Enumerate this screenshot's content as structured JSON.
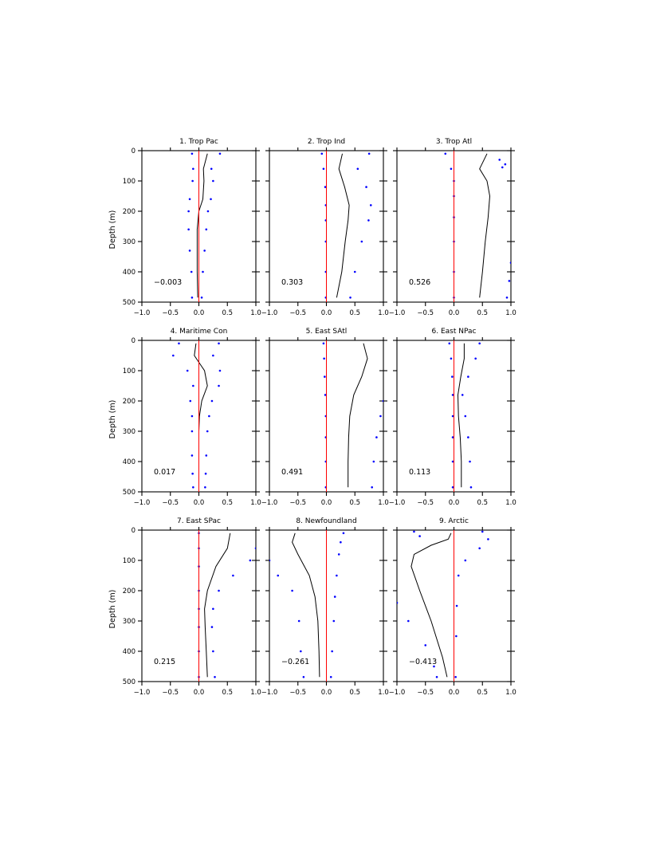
{
  "chart_data": [
    {
      "type": "line",
      "title": "1. Trop Pac",
      "ylabel": "Depth (m)",
      "xlim": [
        -1.0,
        1.0
      ],
      "ylim": [
        0,
        500
      ],
      "y_inverted": true,
      "xticks": [
        "-1.0",
        "-0.5",
        "0.0",
        "0.5",
        "1.0"
      ],
      "yticks": [
        "0",
        "100",
        "200",
        "300",
        "400",
        "500"
      ],
      "annotation": "-0.003",
      "series": [
        {
          "style": "solid",
          "color": "#000000",
          "x": [
            0.15,
            0.08,
            0.09,
            0.07,
            0.0,
            -0.03,
            -0.03,
            -0.03,
            -0.02
          ],
          "y": [
            10,
            60,
            100,
            160,
            200,
            260,
            330,
            400,
            485
          ]
        },
        {
          "style": "dotted",
          "color": "#0000ff",
          "x": [
            -0.12,
            -0.1,
            -0.11,
            -0.16,
            -0.18,
            -0.18,
            -0.16,
            -0.13,
            -0.12
          ],
          "y": [
            10,
            60,
            100,
            160,
            200,
            260,
            330,
            400,
            485
          ]
        },
        {
          "style": "dotted",
          "color": "#0000ff",
          "x": [
            0.37,
            0.22,
            0.25,
            0.21,
            0.16,
            0.13,
            0.1,
            0.07,
            0.05
          ],
          "y": [
            10,
            60,
            100,
            160,
            200,
            260,
            330,
            400,
            485
          ]
        },
        {
          "style": "reference",
          "color": "#ff0000",
          "x": [
            0.0,
            0.0
          ],
          "y": [
            0,
            500
          ]
        }
      ]
    },
    {
      "type": "line",
      "title": "2. Trop Ind",
      "ylabel": "",
      "xlim": [
        -1.0,
        1.0
      ],
      "ylim": [
        0,
        500
      ],
      "y_inverted": true,
      "xticks": [
        "-1.0",
        "-0.5",
        "0.0",
        "0.5",
        "1.0"
      ],
      "yticks": [
        "0",
        "100",
        "200",
        "300",
        "400",
        "500"
      ],
      "annotation": "0.303",
      "series": [
        {
          "style": "solid",
          "color": "#000000",
          "x": [
            0.28,
            0.22,
            0.32,
            0.4,
            0.38,
            0.33,
            0.27,
            0.18
          ],
          "y": [
            10,
            60,
            120,
            180,
            230,
            300,
            400,
            485
          ]
        },
        {
          "style": "dotted",
          "color": "#0000ff",
          "x": [
            -0.08,
            -0.05,
            -0.02,
            -0.01,
            -0.01,
            -0.01,
            -0.01,
            -0.01
          ],
          "y": [
            10,
            60,
            120,
            180,
            230,
            300,
            400,
            485
          ]
        },
        {
          "style": "dotted",
          "color": "#0000ff",
          "x": [
            0.75,
            0.55,
            0.7,
            0.78,
            0.74,
            0.62,
            0.5,
            0.42
          ],
          "y": [
            10,
            60,
            120,
            180,
            230,
            300,
            400,
            485
          ]
        },
        {
          "style": "reference",
          "color": "#ff0000",
          "x": [
            0.0,
            0.0
          ],
          "y": [
            0,
            500
          ]
        }
      ]
    },
    {
      "type": "line",
      "title": "3. Trop Atl",
      "ylabel": "",
      "xlim": [
        -1.0,
        1.0
      ],
      "ylim": [
        0,
        500
      ],
      "y_inverted": true,
      "xticks": [
        "-1.0",
        "-0.5",
        "0.0",
        "0.5",
        "1.0"
      ],
      "yticks": [
        "0",
        "100",
        "200",
        "300",
        "400",
        "500"
      ],
      "annotation": "0.526",
      "series": [
        {
          "style": "solid",
          "color": "#000000",
          "x": [
            0.58,
            0.45,
            0.58,
            0.63,
            0.6,
            0.55,
            0.5,
            0.45
          ],
          "y": [
            10,
            60,
            100,
            150,
            220,
            300,
            400,
            485
          ]
        },
        {
          "style": "dotted",
          "color": "#0000ff",
          "x": [
            -0.15,
            -0.05,
            0.0,
            0.0,
            0.0,
            0.0,
            0.0,
            0.0
          ],
          "y": [
            10,
            60,
            100,
            150,
            220,
            300,
            400,
            485
          ]
        },
        {
          "style": "dotted",
          "color": "#0000ff",
          "x": [
            0.8,
            0.9,
            0.85
          ],
          "y": [
            30,
            45,
            55
          ]
        },
        {
          "style": "dotted",
          "color": "#0000ff",
          "x": [
            1.0,
            0.97,
            0.93
          ],
          "y": [
            370,
            430,
            485
          ]
        },
        {
          "style": "reference",
          "color": "#ff0000",
          "x": [
            0.0,
            0.0
          ],
          "y": [
            0,
            500
          ]
        }
      ]
    },
    {
      "type": "line",
      "title": "4. Maritime Con",
      "ylabel": "Depth (m)",
      "xlim": [
        -1.0,
        1.0
      ],
      "ylim": [
        0,
        500
      ],
      "y_inverted": true,
      "xticks": [
        "-1.0",
        "-0.5",
        "0.0",
        "0.5",
        "1.0"
      ],
      "yticks": [
        "0",
        "100",
        "200",
        "300",
        "400",
        "500"
      ],
      "annotation": "0.017",
      "series": [
        {
          "style": "solid",
          "color": "#000000",
          "x": [
            -0.05,
            -0.08,
            0.1,
            0.15,
            0.05,
            0.01,
            0.0,
            0.0,
            0.0,
            0.0
          ],
          "y": [
            10,
            50,
            100,
            150,
            200,
            250,
            300,
            380,
            440,
            485
          ]
        },
        {
          "style": "dotted",
          "color": "#0000ff",
          "x": [
            -0.35,
            -0.45,
            -0.2,
            -0.1,
            -0.15,
            -0.12,
            -0.12,
            -0.12,
            -0.11,
            -0.1
          ],
          "y": [
            10,
            50,
            100,
            150,
            200,
            250,
            300,
            380,
            440,
            485
          ]
        },
        {
          "style": "dotted",
          "color": "#0000ff",
          "x": [
            0.35,
            0.25,
            0.37,
            0.35,
            0.23,
            0.18,
            0.15,
            0.13,
            0.12,
            0.11
          ],
          "y": [
            10,
            50,
            100,
            150,
            200,
            250,
            300,
            380,
            440,
            485
          ]
        },
        {
          "style": "reference",
          "color": "#ff0000",
          "x": [
            0.0,
            0.0
          ],
          "y": [
            0,
            500
          ]
        }
      ]
    },
    {
      "type": "line",
      "title": "5. East SAtl",
      "ylabel": "",
      "xlim": [
        -1.0,
        1.0
      ],
      "ylim": [
        0,
        500
      ],
      "y_inverted": true,
      "xticks": [
        "-1.0",
        "-0.5",
        "0.0",
        "0.5",
        "1.0"
      ],
      "yticks": [
        "0",
        "100",
        "200",
        "300",
        "400",
        "500"
      ],
      "annotation": "0.491",
      "series": [
        {
          "style": "solid",
          "color": "#000000",
          "x": [
            0.65,
            0.72,
            0.62,
            0.48,
            0.41,
            0.39,
            0.38,
            0.38
          ],
          "y": [
            10,
            60,
            120,
            180,
            250,
            320,
            400,
            485
          ]
        },
        {
          "style": "dotted",
          "color": "#0000ff",
          "x": [
            -0.05,
            -0.04,
            -0.03,
            -0.02,
            -0.01,
            -0.01,
            -0.01,
            -0.01
          ],
          "y": [
            10,
            60,
            120,
            180,
            250,
            320,
            400,
            485
          ]
        },
        {
          "style": "dotted",
          "color": "#0000ff",
          "x": [
            1.0,
            0.95,
            0.88,
            0.83,
            0.8
          ],
          "y": [
            200,
            250,
            320,
            400,
            485
          ]
        },
        {
          "style": "reference",
          "color": "#ff0000",
          "x": [
            0.0,
            0.0
          ],
          "y": [
            0,
            500
          ]
        }
      ]
    },
    {
      "type": "line",
      "title": "6. East NPac",
      "ylabel": "",
      "xlim": [
        -1.0,
        1.0
      ],
      "ylim": [
        0,
        500
      ],
      "y_inverted": true,
      "xticks": [
        "-1.0",
        "-0.5",
        "0.0",
        "0.5",
        "1.0"
      ],
      "yticks": [
        "0",
        "100",
        "200",
        "300",
        "400",
        "500"
      ],
      "annotation": "0.113",
      "series": [
        {
          "style": "solid",
          "color": "#000000",
          "x": [
            0.18,
            0.18,
            0.12,
            0.07,
            0.08,
            0.11,
            0.13,
            0.13
          ],
          "y": [
            10,
            60,
            120,
            180,
            250,
            320,
            400,
            485
          ]
        },
        {
          "style": "dotted",
          "color": "#0000ff",
          "x": [
            -0.08,
            -0.05,
            -0.03,
            -0.02,
            -0.02,
            -0.02,
            -0.02,
            -0.02
          ],
          "y": [
            10,
            60,
            120,
            180,
            250,
            320,
            400,
            485
          ]
        },
        {
          "style": "dotted",
          "color": "#0000ff",
          "x": [
            0.45,
            0.38,
            0.25,
            0.15,
            0.2,
            0.25,
            0.28,
            0.3
          ],
          "y": [
            10,
            60,
            120,
            180,
            250,
            320,
            400,
            485
          ]
        },
        {
          "style": "reference",
          "color": "#ff0000",
          "x": [
            0.0,
            0.0
          ],
          "y": [
            0,
            500
          ]
        }
      ]
    },
    {
      "type": "line",
      "title": "7. East SPac",
      "ylabel": "Depth (m)",
      "xlim": [
        -1.0,
        1.0
      ],
      "ylim": [
        0,
        500
      ],
      "y_inverted": true,
      "xticks": [
        "-1.0",
        "-0.5",
        "0.0",
        "0.5",
        "1.0"
      ],
      "yticks": [
        "0",
        "100",
        "200",
        "300",
        "400",
        "500"
      ],
      "annotation": "0.215",
      "series": [
        {
          "style": "solid",
          "color": "#000000",
          "x": [
            0.55,
            0.5,
            0.3,
            0.15,
            0.1,
            0.11,
            0.13,
            0.15
          ],
          "y": [
            10,
            60,
            120,
            200,
            260,
            320,
            400,
            485
          ]
        },
        {
          "style": "dotted",
          "color": "#0000ff",
          "x": [
            0.0,
            0.0,
            0.0,
            0.0,
            0.0,
            0.0,
            0.0,
            0.0
          ],
          "y": [
            10,
            60,
            120,
            200,
            260,
            320,
            400,
            485
          ]
        },
        {
          "style": "dotted",
          "color": "#0000ff",
          "x": [
            1.0,
            0.9,
            0.6,
            0.35,
            0.25,
            0.23,
            0.25,
            0.28
          ],
          "y": [
            60,
            100,
            150,
            200,
            260,
            320,
            400,
            485
          ]
        },
        {
          "style": "reference",
          "color": "#ff0000",
          "x": [
            0.0,
            0.0
          ],
          "y": [
            0,
            500
          ]
        }
      ]
    },
    {
      "type": "line",
      "title": "8. Newfoundland",
      "ylabel": "",
      "xlim": [
        -1.0,
        1.0
      ],
      "ylim": [
        0,
        500
      ],
      "y_inverted": true,
      "xticks": [
        "-1.0",
        "-0.5",
        "0.0",
        "0.5",
        "1.0"
      ],
      "yticks": [
        "0",
        "100",
        "200",
        "300",
        "400",
        "500"
      ],
      "annotation": "-0.261",
      "series": [
        {
          "style": "solid",
          "color": "#000000",
          "x": [
            -0.55,
            -0.6,
            -0.5,
            -0.3,
            -0.2,
            -0.15,
            -0.13,
            -0.12
          ],
          "y": [
            10,
            40,
            80,
            150,
            220,
            300,
            400,
            485
          ]
        },
        {
          "style": "dotted",
          "color": "#0000ff",
          "x": [
            0.3,
            0.25,
            0.22,
            0.18,
            0.15,
            0.13,
            0.1,
            0.08
          ],
          "y": [
            10,
            40,
            80,
            150,
            220,
            300,
            400,
            485
          ]
        },
        {
          "style": "dotted",
          "color": "#0000ff",
          "x": [
            -1.0,
            -0.85,
            -0.6,
            -0.48,
            -0.45,
            -0.4
          ],
          "y": [
            100,
            150,
            200,
            300,
            400,
            485
          ]
        },
        {
          "style": "reference",
          "color": "#ff0000",
          "x": [
            0.0,
            0.0
          ],
          "y": [
            0,
            500
          ]
        }
      ]
    },
    {
      "type": "line",
      "title": "9. Arctic",
      "ylabel": "",
      "xlim": [
        -1.0,
        1.0
      ],
      "ylim": [
        0,
        500
      ],
      "y_inverted": true,
      "xticks": [
        "-1.0",
        "-0.5",
        "0.0",
        "0.5",
        "1.0"
      ],
      "yticks": [
        "0",
        "100",
        "200",
        "300",
        "400",
        "500"
      ],
      "annotation": "-0.413",
      "series": [
        {
          "style": "solid",
          "color": "#000000",
          "x": [
            -0.05,
            -0.1,
            -0.4,
            -0.7,
            -0.75,
            -0.6,
            -0.4,
            -0.2,
            -0.12
          ],
          "y": [
            10,
            30,
            50,
            80,
            120,
            200,
            300,
            420,
            485
          ]
        },
        {
          "style": "dotted",
          "color": "#0000ff",
          "x": [
            -0.7,
            -0.6
          ],
          "y": [
            5,
            20
          ]
        },
        {
          "style": "dotted",
          "color": "#0000ff",
          "x": [
            -1.0,
            -0.8,
            -0.5,
            -0.35,
            -0.3
          ],
          "y": [
            240,
            300,
            380,
            450,
            485
          ]
        },
        {
          "style": "dotted",
          "color": "#0000ff",
          "x": [
            0.5,
            0.6,
            0.45,
            0.2,
            0.08,
            0.05,
            0.04,
            0.03
          ],
          "y": [
            5,
            30,
            60,
            100,
            150,
            250,
            350,
            485
          ]
        },
        {
          "style": "reference",
          "color": "#ff0000",
          "x": [
            0.0,
            0.0
          ],
          "y": [
            0,
            500
          ]
        }
      ]
    }
  ]
}
